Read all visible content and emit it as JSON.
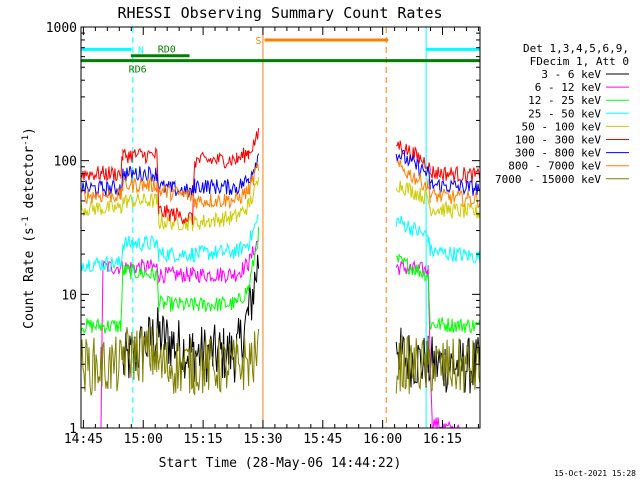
{
  "chart_data": {
    "type": "line",
    "title": "RHESSI Observing Summary Count Rates",
    "xlabel": "Start Time (28-May-06 14:44:22)",
    "ylabel_prefix": "Count Rate (s",
    "ylabel_exp1": "-1",
    "ylabel_mid": " detector",
    "ylabel_exp2": "-1",
    "ylabel_suffix": ")",
    "yscale": "log",
    "ylim": [
      1,
      1000
    ],
    "xlim_minutes": [
      0,
      100
    ],
    "x_ticks": [
      {
        "m": 0.6,
        "label": "14:45"
      },
      {
        "m": 15.6,
        "label": "15:00"
      },
      {
        "m": 30.6,
        "label": "15:15"
      },
      {
        "m": 45.6,
        "label": "15:30"
      },
      {
        "m": 60.6,
        "label": "15:45"
      },
      {
        "m": 75.6,
        "label": "16:00"
      },
      {
        "m": 90.6,
        "label": "16:15"
      }
    ],
    "y_ticks": [
      {
        "v": 1,
        "label": "1"
      },
      {
        "v": 10,
        "label": "10"
      },
      {
        "v": 100,
        "label": "100"
      },
      {
        "v": 1000,
        "label": "1000"
      }
    ],
    "legend_header": [
      "Det 1,3,4,5,6,9,",
      "FDecim 1, Att 0"
    ],
    "legend_position": "right, outside plot",
    "series": [
      {
        "name": "3 - 6 keV",
        "color": "#000000",
        "segments": [
          [
            [
              10.5,
              3.0
            ],
            [
              19,
              5.0
            ],
            [
              28,
              3.6
            ],
            [
              39,
              3.6
            ],
            [
              42,
              7
            ],
            [
              44.5,
              18
            ]
          ],
          [
            [
              79,
              5.0
            ],
            [
              80.2,
              3.5
            ],
            [
              87,
              3.0
            ],
            [
              100,
              2.9
            ]
          ]
        ]
      },
      {
        "name": "6 - 12 keV",
        "color": "#ff00ff",
        "segments": [
          [
            [
              0,
              0.4
            ],
            [
              5,
              0.9
            ],
            [
              5.5,
              16
            ],
            [
              19,
              16
            ],
            [
              19.5,
              14
            ],
            [
              28,
              14
            ],
            [
              39,
              14.2
            ],
            [
              42,
              17
            ],
            [
              44.5,
              26
            ]
          ],
          [
            [
              79,
              16
            ],
            [
              87,
              15
            ],
            [
              88,
              1.1
            ],
            [
              100,
              0.8
            ]
          ]
        ]
      },
      {
        "name": "12 - 25 keV",
        "color": "#00ff00",
        "segments": [
          [
            [
              0,
              5.8
            ],
            [
              10,
              5.8
            ],
            [
              10.5,
              15
            ],
            [
              19,
              14
            ],
            [
              19.5,
              8.5
            ],
            [
              28,
              8.3
            ],
            [
              39,
              8.5
            ],
            [
              42,
              11
            ],
            [
              44.5,
              28
            ]
          ],
          [
            [
              79,
              18
            ],
            [
              87,
              14
            ],
            [
              87.5,
              6.0
            ],
            [
              100,
              5.8
            ]
          ]
        ]
      },
      {
        "name": "25 - 50 keV",
        "color": "#00ffff",
        "segments": [
          [
            [
              0,
              17
            ],
            [
              10,
              17
            ],
            [
              10.5,
              24
            ],
            [
              19,
              24
            ],
            [
              19.5,
              20
            ],
            [
              28,
              20
            ],
            [
              39,
              21
            ],
            [
              42,
              24
            ],
            [
              44.5,
              38
            ]
          ],
          [
            [
              79,
              36
            ],
            [
              87,
              27
            ],
            [
              87.5,
              21
            ],
            [
              100,
              19
            ]
          ]
        ]
      },
      {
        "name": "50 - 100 keV",
        "color": "#cccc00",
        "segments": [
          [
            [
              0,
              44
            ],
            [
              10,
              44
            ],
            [
              10.5,
              50
            ],
            [
              19,
              50
            ],
            [
              19.5,
              35
            ],
            [
              28,
              34
            ],
            [
              39,
              38
            ],
            [
              42,
              46
            ],
            [
              44.5,
              70
            ]
          ],
          [
            [
              79,
              68
            ],
            [
              87,
              52
            ],
            [
              87.5,
              44
            ],
            [
              100,
              41
            ]
          ]
        ]
      },
      {
        "name": "100 - 300 keV",
        "color": "#ff0000",
        "segments": [
          [
            [
              0,
              80
            ],
            [
              10,
              80
            ],
            [
              10.5,
              110
            ],
            [
              19,
              110
            ],
            [
              19.5,
              42
            ],
            [
              28,
              37
            ],
            [
              28.5,
              100
            ],
            [
              39,
              102
            ],
            [
              42,
              115
            ],
            [
              44.5,
              155
            ]
          ],
          [
            [
              79,
              135
            ],
            [
              87,
              95
            ],
            [
              87.5,
              82
            ],
            [
              100,
              77
            ]
          ]
        ]
      },
      {
        "name": "300 - 800 keV",
        "color": "#0000ff",
        "segments": [
          [
            [
              0,
              62
            ],
            [
              10,
              62
            ],
            [
              10.5,
              80
            ],
            [
              19,
              80
            ],
            [
              19.5,
              64
            ],
            [
              28,
              58
            ],
            [
              28.5,
              65
            ],
            [
              39,
              63
            ],
            [
              42,
              72
            ],
            [
              44.5,
              110
            ]
          ],
          [
            [
              79,
              115
            ],
            [
              87,
              80
            ],
            [
              87.5,
              66
            ],
            [
              100,
              62
            ]
          ]
        ]
      },
      {
        "name": "800 - 7000 keV",
        "color": "#ff8000",
        "segments": [
          [
            [
              0,
              55
            ],
            [
              10,
              55
            ],
            [
              10.5,
              66
            ],
            [
              19,
              66
            ],
            [
              19.5,
              60
            ],
            [
              28,
              54
            ],
            [
              28.5,
              50
            ],
            [
              39,
              51
            ],
            [
              42,
              60
            ],
            [
              44.5,
              92
            ]
          ],
          [
            [
              79,
              92
            ],
            [
              87,
              65
            ],
            [
              87.5,
              55
            ],
            [
              100,
              51
            ]
          ]
        ]
      },
      {
        "name": "7000 - 15000 keV",
        "color": "#808000",
        "segments": [
          [
            [
              0,
              2.9
            ],
            [
              10,
              2.9
            ],
            [
              10.5,
              3.6
            ],
            [
              19,
              3.6
            ],
            [
              19.5,
              2.9
            ],
            [
              28,
              2.9
            ],
            [
              39,
              2.9
            ],
            [
              44.5,
              3.4
            ]
          ],
          [
            [
              79,
              3.0
            ],
            [
              87,
              2.9
            ],
            [
              100,
              2.8
            ]
          ]
        ]
      }
    ],
    "annotations": {
      "intervals": [
        {
          "label": "N",
          "color": "#00ffff",
          "value": 680,
          "segments": [
            [
              0,
              12.7
            ],
            [
              86.5,
              100
            ]
          ],
          "label_m": 15.0
        },
        {
          "label": "RD0",
          "color": "#008000",
          "value": 610,
          "segments": [
            [
              12.5,
              27.2
            ]
          ],
          "label_m": 21.5,
          "label_above": true
        },
        {
          "label": "RD6",
          "color": "#008000",
          "value": 560,
          "segments": [
            [
              0,
              27.2
            ],
            [
              27.2,
              100
            ]
          ],
          "label_m": 14.2,
          "label_below": true
        },
        {
          "label": "S",
          "color": "#ff8000",
          "value": 800,
          "segments": [
            [
              46,
              77
            ]
          ],
          "label_m": 44.5
        }
      ],
      "vlines": [
        {
          "m": 0,
          "color": "#00ffff",
          "style": "solid"
        },
        {
          "m": 13.0,
          "color": "#00ffff",
          "style": "dashed"
        },
        {
          "m": 45.6,
          "color": "#ff8000",
          "style": "solid"
        },
        {
          "m": 76.5,
          "color": "#ff8000",
          "style": "dashed"
        },
        {
          "m": 86.5,
          "color": "#00ffff",
          "style": "solid"
        },
        {
          "m": 100,
          "color": "#00ffff",
          "style": "dashed"
        }
      ]
    }
  },
  "footer_timestamp": "15-Oct-2021 15:28"
}
